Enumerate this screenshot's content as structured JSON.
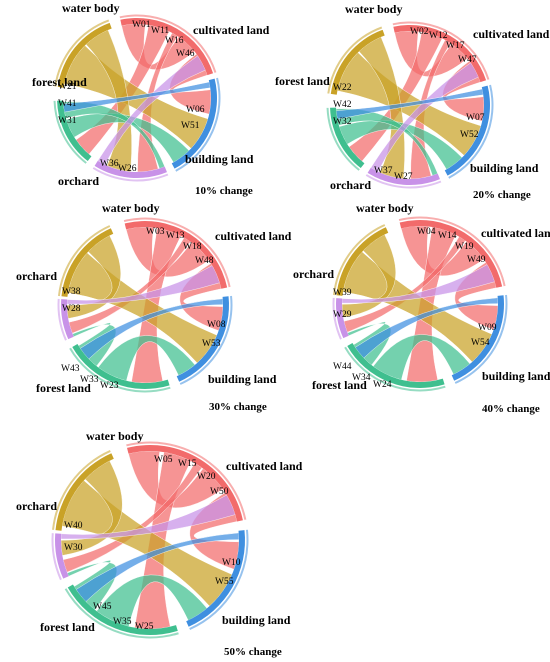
{
  "colors": {
    "water body": "#c9a227",
    "cultivated land": "#f26b6b",
    "building land": "#3f8fe0",
    "orchard": "#c892e8",
    "forest land": "#3fbf8f"
  },
  "panels": [
    {
      "change": "10% change",
      "order": [
        "water body",
        "cultivated land",
        "building land",
        "orchard",
        "forest land"
      ],
      "categories": {
        "water body": [],
        "cultivated land": [
          "W01",
          "W11",
          "W16",
          "W46"
        ],
        "building land": [
          "W06",
          "W51"
        ],
        "orchard": [
          "W36",
          "W26"
        ],
        "forest land": [
          "W21",
          "W41",
          "W31"
        ]
      }
    },
    {
      "change": "20% change",
      "order": [
        "water body",
        "cultivated land",
        "building land",
        "orchard",
        "forest land"
      ],
      "categories": {
        "water body": [],
        "cultivated land": [
          "W02",
          "W12",
          "W17",
          "W47"
        ],
        "building land": [
          "W07",
          "W52"
        ],
        "orchard": [
          "W37",
          "W27"
        ],
        "forest land": [
          "W22",
          "W42",
          "W32"
        ]
      }
    },
    {
      "change": "30% change",
      "order": [
        "water body",
        "cultivated land",
        "building land",
        "forest land",
        "orchard"
      ],
      "categories": {
        "water body": [],
        "cultivated land": [
          "W03",
          "W13",
          "W18",
          "W48"
        ],
        "building land": [
          "W08",
          "W53"
        ],
        "forest land": [
          "W43",
          "W33",
          "W23"
        ],
        "orchard": [
          "W38",
          "W28"
        ]
      }
    },
    {
      "change": "40% change",
      "order": [
        "water body",
        "cultivated land",
        "building land",
        "forest land",
        "orchard"
      ],
      "categories": {
        "water body": [],
        "cultivated land": [
          "W04",
          "W14",
          "W19",
          "W49"
        ],
        "building land": [
          "W09",
          "W54"
        ],
        "forest land": [
          "W44",
          "W34",
          "W24"
        ],
        "orchard": [
          "W39",
          "W29"
        ]
      }
    },
    {
      "change": "50% change",
      "order": [
        "water body",
        "cultivated land",
        "building land",
        "forest land",
        "orchard"
      ],
      "categories": {
        "water body": [],
        "cultivated land": [
          "W05",
          "W15",
          "W20",
          "W50"
        ],
        "building land": [
          "W10",
          "W55"
        ],
        "forest land": [
          "W45",
          "W35",
          "W25"
        ],
        "orchard": [
          "W40",
          "W30"
        ]
      }
    }
  ]
}
